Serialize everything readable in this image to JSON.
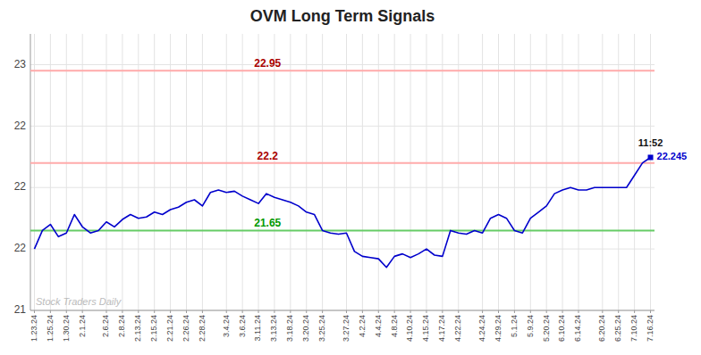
{
  "chart_data": {
    "type": "line",
    "title": "OVM Long Term Signals",
    "categories": [
      "1.23.24",
      null,
      "1.25.24",
      null,
      "1.30.24",
      null,
      "2.1.24",
      null,
      null,
      "2.6.24",
      null,
      "2.8.24",
      null,
      "2.13.24",
      null,
      "2.15.24",
      null,
      "2.21.24",
      null,
      "2.26.24",
      null,
      "2.28.24",
      null,
      null,
      "3.4.24",
      null,
      "3.6.24",
      null,
      "3.11.24",
      null,
      "3.13.24",
      null,
      "3.18.24",
      null,
      "3.20.24",
      null,
      "3.25.24",
      null,
      null,
      "3.27.24",
      null,
      "4.2.24",
      null,
      "4.4.24",
      null,
      "4.8.24",
      null,
      "4.10.24",
      null,
      "4.15.24",
      null,
      "4.17.24",
      null,
      "4.22.24",
      null,
      null,
      "4.24.24",
      null,
      "4.29.24",
      null,
      "5.1.24",
      null,
      "5.9.24",
      null,
      "5.20.24",
      null,
      "6.10.24",
      null,
      "6.14.24",
      null,
      null,
      "6.20.24",
      null,
      "6.25.24",
      null,
      "7.10.24",
      null,
      "7.16.24"
    ],
    "values": [
      21.5,
      21.65,
      21.7,
      21.6,
      21.63,
      21.78,
      21.68,
      21.63,
      21.65,
      21.72,
      21.68,
      21.74,
      21.78,
      21.75,
      21.76,
      21.8,
      21.78,
      21.82,
      21.84,
      21.88,
      21.9,
      21.85,
      21.96,
      21.98,
      21.96,
      21.97,
      21.93,
      21.9,
      21.87,
      21.95,
      21.92,
      21.9,
      21.88,
      21.85,
      21.8,
      21.78,
      21.65,
      21.63,
      21.62,
      21.63,
      21.48,
      21.44,
      21.43,
      21.42,
      21.35,
      21.44,
      21.46,
      21.43,
      21.46,
      21.5,
      21.45,
      21.44,
      21.65,
      21.63,
      21.62,
      21.65,
      21.63,
      21.75,
      21.78,
      21.75,
      21.65,
      21.63,
      21.75,
      21.8,
      21.85,
      21.95,
      21.98,
      22.0,
      21.98,
      21.98,
      22.0,
      22.0,
      22.0,
      22.0,
      22.0,
      22.1,
      22.2,
      22.245
    ],
    "color": "#0000cc",
    "ylim": [
      21.0,
      23.25
    ],
    "yticks": [
      21.0,
      {
        "value": 21.5,
        "label": "22"
      },
      22.0,
      {
        "value": 22.5,
        "label": "22"
      },
      23.0
    ],
    "grid": true,
    "hlines": [
      {
        "value": 22.95,
        "label": "22.95",
        "color": "#ffaaaa",
        "label_color": "#aa0000"
      },
      {
        "value": 22.2,
        "label": "22.2",
        "color": "#ffaaaa",
        "label_color": "#aa0000"
      },
      {
        "value": 21.65,
        "label": "21.65",
        "color": "#66cc66",
        "label_color": "#009900"
      }
    ],
    "annotations": [
      {
        "text": "11:52",
        "color": "#111111"
      },
      {
        "text": "22.245",
        "color": "#0000cc"
      }
    ],
    "watermark": "Stock Traders Daily"
  }
}
